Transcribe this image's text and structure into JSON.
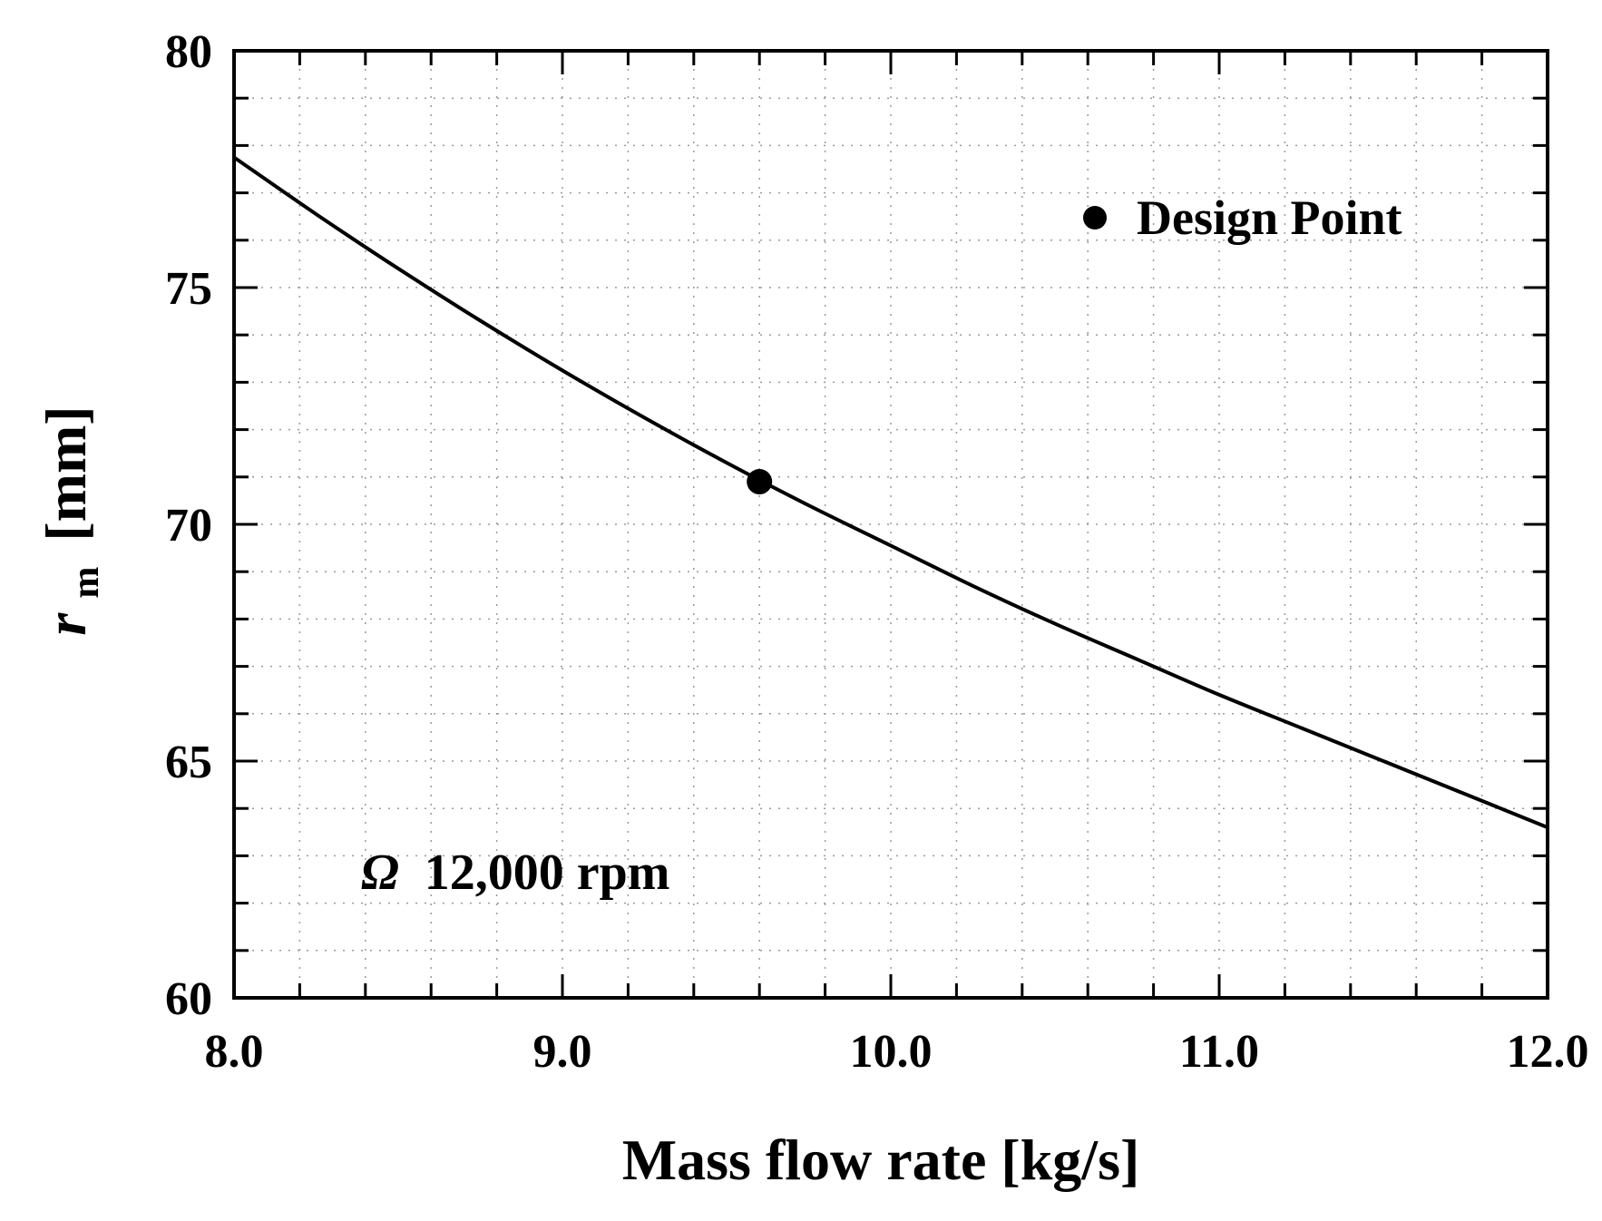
{
  "chart_data": {
    "type": "line",
    "title": "",
    "xlabel": "Mass flow rate [kg/s]",
    "ylabel_main": "r",
    "ylabel_sub": "m",
    "ylabel_unit": "[mm]",
    "xlim": [
      8.0,
      12.0
    ],
    "ylim": [
      60,
      80
    ],
    "x_ticks": [
      8.0,
      9.0,
      10.0,
      11.0,
      12.0
    ],
    "x_tick_labels": [
      "8.0",
      "9.0",
      "10.0",
      "11.0",
      "12.0"
    ],
    "y_ticks": [
      60,
      65,
      70,
      75,
      80
    ],
    "y_tick_labels": [
      "60",
      "65",
      "70",
      "75",
      "80"
    ],
    "grid": true,
    "series": [
      {
        "name": "r_m",
        "color": "#000000",
        "x": [
          8.0,
          8.25,
          8.5,
          8.75,
          9.0,
          9.25,
          9.5,
          9.75,
          10.0,
          10.25,
          10.5,
          10.75,
          11.0,
          11.25,
          11.5,
          11.75,
          12.0
        ],
        "y": [
          77.75,
          76.55,
          75.4,
          74.3,
          73.25,
          72.25,
          71.3,
          70.4,
          69.55,
          68.7,
          67.9,
          67.15,
          66.4,
          65.7,
          65.0,
          64.3,
          63.6
        ]
      }
    ],
    "design_point": {
      "x": 9.6,
      "y": 70.9
    },
    "legend": {
      "label": "Design Point",
      "placement": "top-right"
    },
    "annotation": {
      "symbol": "Ω",
      "text": "12,000 rpm"
    }
  }
}
